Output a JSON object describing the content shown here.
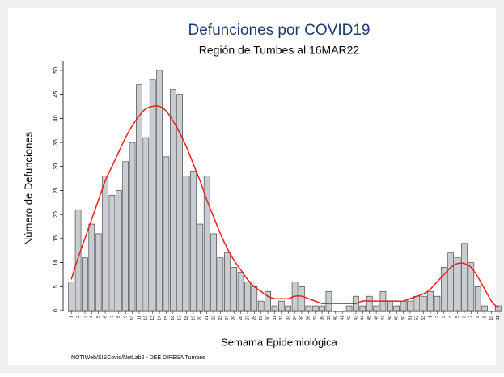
{
  "chart_data": {
    "type": "bar",
    "title": "Defunciones por COVID19",
    "subtitle": "Región de Tumbes al 16MAR22",
    "y_label": "Número de Defunciones",
    "x_label": "Semama Epidemiológica",
    "source": "NOTIWeb/SISCovid/NetLab2 - DEE DIRESA Tumbes",
    "categories": [
      "1",
      "2",
      "3",
      "4",
      "5",
      "6",
      "7",
      "8",
      "9",
      "10",
      "11",
      "12",
      "13",
      "14",
      "15",
      "16",
      "17",
      "18",
      "19",
      "20",
      "21",
      "22",
      "23",
      "24",
      "25",
      "26",
      "27",
      "28",
      "29",
      "30",
      "31",
      "32",
      "33",
      "34",
      "35",
      "36",
      "37",
      "38",
      "39",
      "40",
      "41",
      "42",
      "43",
      "44",
      "45",
      "46",
      "47",
      "48",
      "49",
      "50",
      "51",
      "52",
      "53",
      "1",
      "2",
      "3",
      "4",
      "5",
      "6",
      "7",
      "8",
      "9",
      "10",
      "11"
    ],
    "values": [
      6,
      21,
      11,
      18,
      16,
      28,
      24,
      25,
      31,
      35,
      47,
      36,
      48,
      50,
      32,
      46,
      45,
      28,
      29,
      18,
      28,
      16,
      11,
      12,
      9,
      8,
      6,
      5,
      2,
      4,
      1,
      2,
      1,
      6,
      5,
      1,
      1,
      1,
      4,
      0,
      0,
      1,
      3,
      1,
      3,
      1,
      4,
      2,
      1,
      2,
      2,
      3,
      3,
      4,
      3,
      9,
      12,
      11,
      14,
      10,
      5,
      1,
      0,
      1
    ],
    "color": "#c9cdd1",
    "trend": {
      "color": "#e8201c",
      "values": [
        6.5,
        11,
        15,
        19,
        23,
        27,
        30,
        33,
        36,
        38.5,
        40.5,
        42,
        42.5,
        42.5,
        41.5,
        39.5,
        37,
        34,
        30.5,
        27,
        23,
        19.5,
        16,
        13,
        10.5,
        8.5,
        6.5,
        5,
        4,
        3,
        2.5,
        2.5,
        2.5,
        3,
        3,
        2.5,
        2,
        1.5,
        1.5,
        1.5,
        1.5,
        1.5,
        1.5,
        2,
        2,
        2,
        2,
        2,
        2,
        2,
        2.5,
        3,
        3.5,
        4.5,
        6,
        7.5,
        9,
        9.8,
        9.8,
        9,
        7,
        4.5,
        2,
        0.5
      ]
    },
    "ylim": [
      0,
      52
    ],
    "yticks": [
      0,
      5,
      10,
      15,
      20,
      25,
      30,
      35,
      40,
      45,
      50
    ]
  }
}
